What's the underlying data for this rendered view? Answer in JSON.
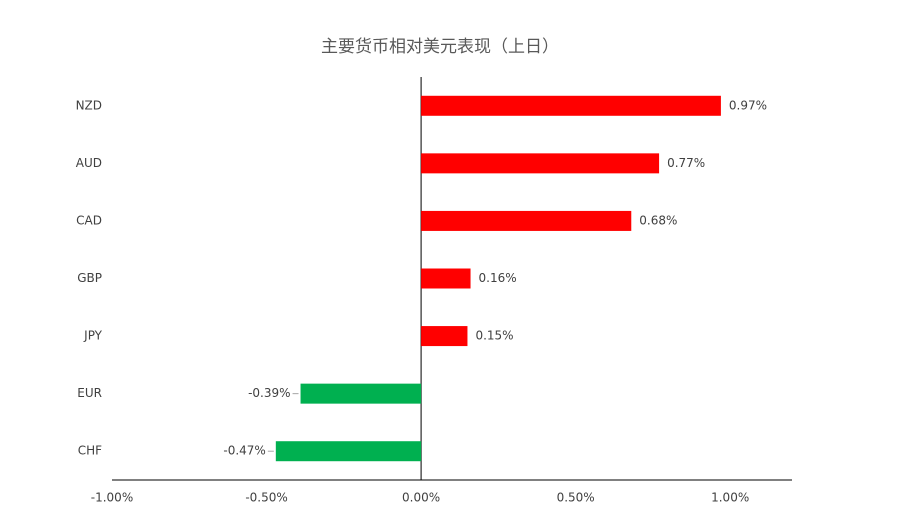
{
  "chart_data": {
    "type": "hbar",
    "title": "主要货币相对美元表现（上日）",
    "categories": [
      "NZD",
      "AUD",
      "CAD",
      "GBP",
      "JPY",
      "EUR",
      "CHF"
    ],
    "values": [
      0.97,
      0.77,
      0.68,
      0.16,
      0.15,
      -0.39,
      -0.47
    ],
    "value_labels": [
      "0.97%",
      "0.77%",
      "0.68%",
      "0.16%",
      "0.15%",
      "-0.39%",
      "-0.47%"
    ],
    "positive_color": "#ff0000",
    "negative_color": "#00b050",
    "xlim": [
      -1,
      1.2
    ],
    "xticks": [
      {
        "value": -1,
        "label": "-1.00%"
      },
      {
        "value": -0.5,
        "label": "-0.50%"
      },
      {
        "value": 0,
        "label": "0.00%"
      },
      {
        "value": 0.5,
        "label": "0.50%"
      },
      {
        "value": 1,
        "label": "1.00%"
      }
    ],
    "grid": false
  }
}
